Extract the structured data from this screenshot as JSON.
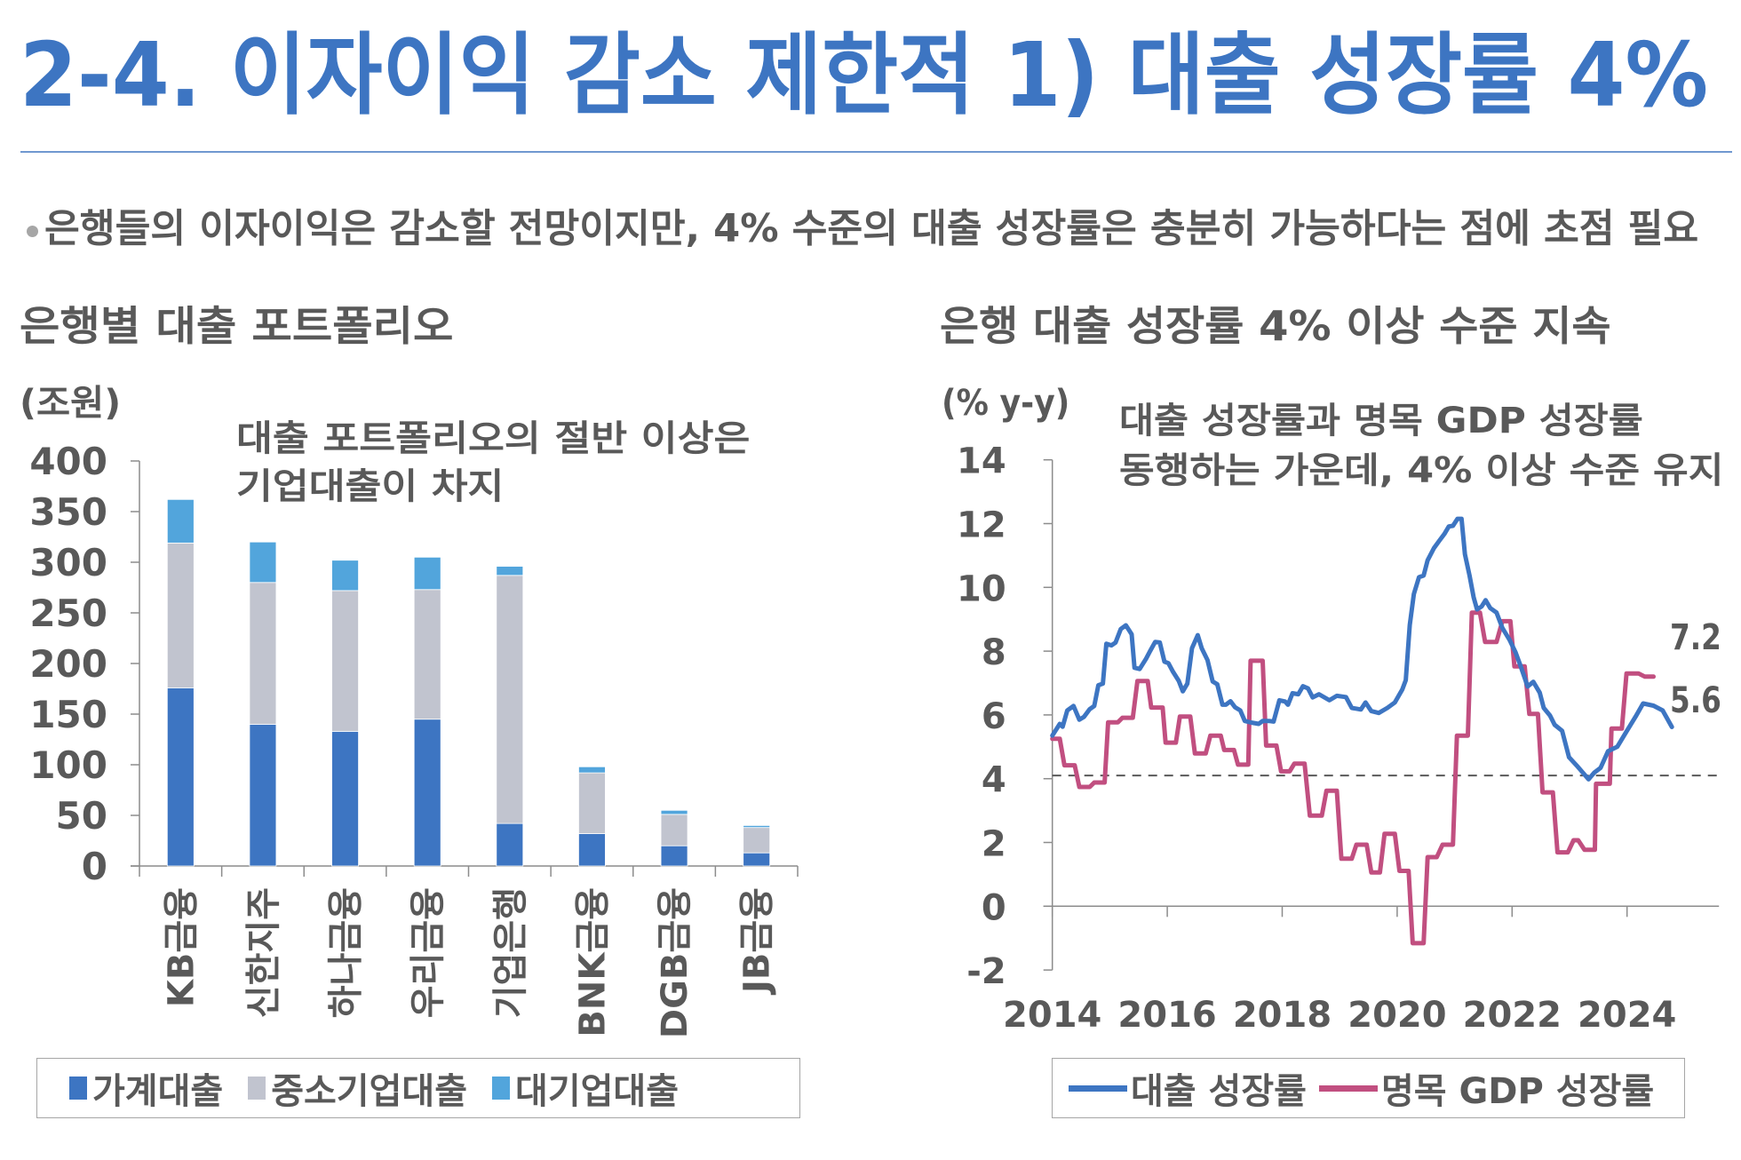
{
  "header": {
    "title": "2-4. 이자이익 감소 제한적 1) 대출 성장률 4%",
    "summary": "은행들의 이자이익은 감소할 전망이지만, 4% 수준의 대출 성장률은 충분히 가능하다는 점에 초점 필요"
  },
  "colors": {
    "title": "#3d75c2",
    "rule": "#7098d0",
    "text": "#595959",
    "household": "#3d75c2",
    "sme": "#c1c4cf",
    "large_corp": "#52a5dc",
    "loan_growth": "#3d75c2",
    "gdp_growth": "#c14f80",
    "reference_line": "#595959"
  },
  "left_panel": {
    "section_title": "은행별 대출 포트폴리오",
    "unit": "(조원)",
    "note_line1": "대출 포트폴리오의 절반 이상은",
    "note_line2": "기업대출이 차지"
  },
  "right_panel": {
    "section_title": "은행 대출 성장률 4% 이상 수준 지속",
    "unit": "(% y-y)",
    "note_line1": "대출 성장률과 명목 GDP 성장률",
    "note_line2": "동행하는 가운데, 4% 이상 수준 유지",
    "end_label_gdp": "7.2",
    "end_label_loan": "5.6"
  },
  "chart_data": [
    {
      "type": "bar",
      "stacked": true,
      "title": "은행별 대출 포트폴리오",
      "ylabel": "(조원)",
      "ylim": [
        0,
        400
      ],
      "yticks": [
        "0",
        "50",
        "100",
        "150",
        "200",
        "250",
        "300",
        "350",
        "400"
      ],
      "categories": [
        "KB금융",
        "신한지주",
        "하나금융",
        "우리금융",
        "기업은행",
        "BNK금융",
        "DGB금융",
        "JB금융"
      ],
      "series": [
        {
          "name": "가계대출",
          "values": [
            176,
            140,
            133,
            145,
            42,
            32,
            20,
            13
          ]
        },
        {
          "name": "중소기업대출",
          "values": [
            143,
            140,
            139,
            128,
            245,
            60,
            31,
            25
          ]
        },
        {
          "name": "대기업대출",
          "values": [
            43,
            40,
            30,
            32,
            9,
            6,
            4,
            2
          ]
        }
      ],
      "legend": [
        "가계대출",
        "중소기업대출",
        "대기업대출"
      ],
      "legend_position": "bottom",
      "annotation": "대출 포트폴리오의 절반 이상은 기업대출이 차지"
    },
    {
      "type": "line",
      "title": "은행 대출 성장률 4% 이상 수준 지속",
      "ylabel": "(% y-y)",
      "ylim": [
        -2,
        14
      ],
      "yticks": [
        "-2",
        "0",
        "2",
        "4",
        "6",
        "8",
        "10",
        "12",
        "14"
      ],
      "xlim": [
        2014,
        2025.6
      ],
      "xticks": [
        "2014",
        "2016",
        "2018",
        "2020",
        "2022",
        "2024"
      ],
      "reference_line": 4.1,
      "legend": [
        "대출 성장률",
        "명목 GDP 성장률"
      ],
      "legend_position": "bottom",
      "annotation": "대출 성장률과 명목 GDP 성장률 동행하는 가운데, 4% 이상 수준 유지",
      "series": [
        {
          "name": "대출 성장률",
          "end_label": "5.6",
          "points": [
            [
              2014.0,
              5.35
            ],
            [
              2014.13,
              5.72
            ],
            [
              2014.18,
              5.63
            ],
            [
              2014.26,
              6.14
            ],
            [
              2014.37,
              6.28
            ],
            [
              2014.47,
              5.85
            ],
            [
              2014.55,
              5.94
            ],
            [
              2014.65,
              6.18
            ],
            [
              2014.73,
              6.28
            ],
            [
              2014.8,
              6.93
            ],
            [
              2014.88,
              6.98
            ],
            [
              2014.94,
              8.23
            ],
            [
              2015.03,
              8.18
            ],
            [
              2015.1,
              8.27
            ],
            [
              2015.19,
              8.69
            ],
            [
              2015.28,
              8.81
            ],
            [
              2015.38,
              8.53
            ],
            [
              2015.43,
              7.48
            ],
            [
              2015.52,
              7.44
            ],
            [
              2015.63,
              7.76
            ],
            [
              2015.7,
              8.0
            ],
            [
              2015.79,
              8.29
            ],
            [
              2015.87,
              8.27
            ],
            [
              2015.95,
              7.67
            ],
            [
              2016.02,
              7.62
            ],
            [
              2016.1,
              7.35
            ],
            [
              2016.2,
              7.07
            ],
            [
              2016.27,
              6.74
            ],
            [
              2016.35,
              6.98
            ],
            [
              2016.43,
              8.09
            ],
            [
              2016.53,
              8.5
            ],
            [
              2016.6,
              8.09
            ],
            [
              2016.7,
              7.72
            ],
            [
              2016.79,
              7.05
            ],
            [
              2016.87,
              6.96
            ],
            [
              2016.96,
              6.32
            ],
            [
              2017.02,
              6.32
            ],
            [
              2017.1,
              6.43
            ],
            [
              2017.18,
              6.24
            ],
            [
              2017.27,
              6.14
            ],
            [
              2017.35,
              5.81
            ],
            [
              2017.46,
              5.76
            ],
            [
              2017.59,
              5.72
            ],
            [
              2017.66,
              5.81
            ],
            [
              2017.77,
              5.81
            ],
            [
              2017.85,
              5.79
            ],
            [
              2017.95,
              6.46
            ],
            [
              2018.05,
              6.42
            ],
            [
              2018.1,
              6.32
            ],
            [
              2018.18,
              6.68
            ],
            [
              2018.28,
              6.65
            ],
            [
              2018.36,
              6.9
            ],
            [
              2018.45,
              6.83
            ],
            [
              2018.53,
              6.55
            ],
            [
              2018.64,
              6.65
            ],
            [
              2018.82,
              6.46
            ],
            [
              2018.95,
              6.6
            ],
            [
              2019.11,
              6.56
            ],
            [
              2019.21,
              6.22
            ],
            [
              2019.37,
              6.17
            ],
            [
              2019.45,
              6.39
            ],
            [
              2019.55,
              6.12
            ],
            [
              2019.68,
              6.06
            ],
            [
              2019.83,
              6.22
            ],
            [
              2019.96,
              6.39
            ],
            [
              2020.09,
              6.8
            ],
            [
              2020.15,
              7.09
            ],
            [
              2020.22,
              8.82
            ],
            [
              2020.29,
              9.79
            ],
            [
              2020.38,
              10.32
            ],
            [
              2020.46,
              10.37
            ],
            [
              2020.53,
              10.85
            ],
            [
              2020.64,
              11.23
            ],
            [
              2020.74,
              11.48
            ],
            [
              2020.82,
              11.67
            ],
            [
              2020.9,
              11.91
            ],
            [
              2020.97,
              11.93
            ],
            [
              2021.05,
              12.15
            ],
            [
              2021.12,
              12.15
            ],
            [
              2021.18,
              11.04
            ],
            [
              2021.26,
              10.37
            ],
            [
              2021.33,
              9.69
            ],
            [
              2021.39,
              9.31
            ],
            [
              2021.47,
              9.4
            ],
            [
              2021.54,
              9.6
            ],
            [
              2021.62,
              9.35
            ],
            [
              2021.73,
              9.21
            ],
            [
              2021.83,
              8.73
            ],
            [
              2021.96,
              8.34
            ],
            [
              2022.06,
              7.96
            ],
            [
              2022.14,
              7.57
            ],
            [
              2022.27,
              6.89
            ],
            [
              2022.37,
              7.04
            ],
            [
              2022.48,
              6.7
            ],
            [
              2022.55,
              6.22
            ],
            [
              2022.66,
              5.98
            ],
            [
              2022.74,
              5.69
            ],
            [
              2022.87,
              5.5
            ],
            [
              2022.99,
              4.67
            ],
            [
              2023.14,
              4.38
            ],
            [
              2023.33,
              3.98
            ],
            [
              2023.43,
              4.19
            ],
            [
              2023.54,
              4.34
            ],
            [
              2023.67,
              4.86
            ],
            [
              2023.83,
              5.0
            ],
            [
              2023.99,
              5.48
            ],
            [
              2024.15,
              5.95
            ],
            [
              2024.28,
              6.36
            ],
            [
              2024.46,
              6.29
            ],
            [
              2024.62,
              6.14
            ],
            [
              2024.78,
              5.62
            ]
          ]
        },
        {
          "name": "명목 GDP 성장률",
          "end_label": "7.2",
          "points": [
            [
              2014.0,
              5.25
            ],
            [
              2014.13,
              5.25
            ],
            [
              2014.21,
              4.42
            ],
            [
              2014.39,
              4.42
            ],
            [
              2014.47,
              3.74
            ],
            [
              2014.65,
              3.74
            ],
            [
              2014.73,
              3.88
            ],
            [
              2014.91,
              3.88
            ],
            [
              2014.97,
              5.77
            ],
            [
              2015.14,
              5.77
            ],
            [
              2015.22,
              5.91
            ],
            [
              2015.4,
              5.91
            ],
            [
              2015.48,
              7.06
            ],
            [
              2015.66,
              7.06
            ],
            [
              2015.72,
              6.23
            ],
            [
              2015.92,
              6.23
            ],
            [
              2015.97,
              5.13
            ],
            [
              2016.15,
              5.13
            ],
            [
              2016.22,
              5.95
            ],
            [
              2016.4,
              5.95
            ],
            [
              2016.48,
              4.79
            ],
            [
              2016.67,
              4.79
            ],
            [
              2016.75,
              5.35
            ],
            [
              2016.93,
              5.35
            ],
            [
              2016.99,
              4.9
            ],
            [
              2017.16,
              4.9
            ],
            [
              2017.23,
              4.44
            ],
            [
              2017.41,
              4.44
            ],
            [
              2017.45,
              7.7
            ],
            [
              2017.66,
              7.7
            ],
            [
              2017.72,
              5.04
            ],
            [
              2017.9,
              5.04
            ],
            [
              2017.98,
              4.23
            ],
            [
              2018.13,
              4.23
            ],
            [
              2018.21,
              4.47
            ],
            [
              2018.39,
              4.47
            ],
            [
              2018.48,
              2.84
            ],
            [
              2018.69,
              2.84
            ],
            [
              2018.77,
              3.62
            ],
            [
              2018.95,
              3.62
            ],
            [
              2019.03,
              1.49
            ],
            [
              2019.21,
              1.49
            ],
            [
              2019.29,
              1.93
            ],
            [
              2019.47,
              1.93
            ],
            [
              2019.55,
              1.06
            ],
            [
              2019.7,
              1.06
            ],
            [
              2019.78,
              2.27
            ],
            [
              2019.96,
              2.27
            ],
            [
              2020.04,
              1.11
            ],
            [
              2020.2,
              1.11
            ],
            [
              2020.27,
              -1.16
            ],
            [
              2020.46,
              -1.16
            ],
            [
              2020.53,
              1.54
            ],
            [
              2020.69,
              1.54
            ],
            [
              2020.79,
              1.93
            ],
            [
              2020.97,
              1.93
            ],
            [
              2021.04,
              5.35
            ],
            [
              2021.23,
              5.35
            ],
            [
              2021.3,
              9.21
            ],
            [
              2021.44,
              9.21
            ],
            [
              2021.53,
              8.29
            ],
            [
              2021.73,
              8.29
            ],
            [
              2021.83,
              8.94
            ],
            [
              2021.97,
              8.94
            ],
            [
              2022.04,
              7.52
            ],
            [
              2022.22,
              7.52
            ],
            [
              2022.3,
              6.03
            ],
            [
              2022.45,
              6.03
            ],
            [
              2022.53,
              3.57
            ],
            [
              2022.71,
              3.57
            ],
            [
              2022.79,
              1.69
            ],
            [
              2022.97,
              1.69
            ],
            [
              2023.07,
              2.07
            ],
            [
              2023.15,
              2.07
            ],
            [
              2023.26,
              1.77
            ],
            [
              2023.44,
              1.77
            ],
            [
              2023.46,
              3.84
            ],
            [
              2023.7,
              3.84
            ],
            [
              2023.73,
              5.57
            ],
            [
              2023.91,
              5.57
            ],
            [
              2023.99,
              7.3
            ],
            [
              2024.2,
              7.3
            ],
            [
              2024.31,
              7.2
            ],
            [
              2024.46,
              7.2
            ]
          ]
        }
      ]
    }
  ]
}
